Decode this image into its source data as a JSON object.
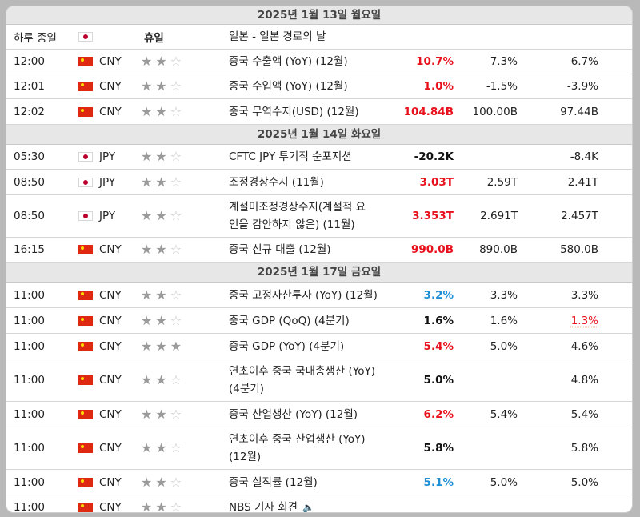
{
  "colors": {
    "better": "#e8121e",
    "worse": "#1e8fd6",
    "date_header_bg": "#e7e7e7"
  },
  "date_headers": [
    "2025년 1월 13일 월요일",
    "2025년 1월 14일 화요일",
    "2025년 1월 17일 금요일"
  ],
  "holiday": {
    "label": "하루 종일",
    "flag": "jp-flag-icon",
    "type": "휴일",
    "event": "일본 - 일본 경로의 날"
  },
  "day1": [
    {
      "time": "12:00",
      "currency": "CNY",
      "event": "중국 수출액 (YoY) (12월)",
      "actual": "10.7%",
      "forecast": "7.3%",
      "previous": "6.7%"
    },
    {
      "time": "12:01",
      "currency": "CNY",
      "event": "중국 수입액 (YoY) (12월)",
      "actual": "1.0%",
      "forecast": "-1.5%",
      "previous": "-3.9%"
    },
    {
      "time": "12:02",
      "currency": "CNY",
      "event": "중국 무역수지(USD) (12월)",
      "actual": "104.84B",
      "forecast": "100.00B",
      "previous": "97.44B"
    }
  ],
  "day2": [
    {
      "time": "05:30",
      "currency": "JPY",
      "event": "CFTC JPY 투기적 순포지션",
      "actual": "-20.2K",
      "forecast": "",
      "previous": "-8.4K"
    },
    {
      "time": "08:50",
      "currency": "JPY",
      "event": "조정경상수지 (11월)",
      "actual": "3.03T",
      "forecast": "2.59T",
      "previous": "2.41T"
    },
    {
      "time": "08:50",
      "currency": "JPY",
      "event_line1": "계절미조정경상수지(계절적 요",
      "event_line2": "인을 감안하지 않은) (11월)",
      "actual": "3.353T",
      "forecast": "2.691T",
      "previous": "2.457T"
    },
    {
      "time": "16:15",
      "currency": "CNY",
      "event": "중국 신규 대출 (12월)",
      "actual": "990.0B",
      "forecast": "890.0B",
      "previous": "580.0B"
    }
  ],
  "day3": [
    {
      "time": "11:00",
      "currency": "CNY",
      "event": "중국 고정자산투자 (YoY) (12월)",
      "actual": "3.2%",
      "forecast": "3.3%",
      "previous": "3.3%"
    },
    {
      "time": "11:00",
      "currency": "CNY",
      "event": "중국 GDP (QoQ) (4분기)",
      "actual": "1.6%",
      "forecast": "1.6%",
      "previous": "1.3%"
    },
    {
      "time": "11:00",
      "currency": "CNY",
      "event": "중국 GDP (YoY) (4분기)",
      "actual": "5.4%",
      "forecast": "5.0%",
      "previous": "4.6%"
    },
    {
      "time": "11:00",
      "currency": "CNY",
      "event_line1": "연초이후 중국 국내총생산 (YoY)",
      "event_line2": "(4분기)",
      "actual": "5.0%",
      "forecast": "",
      "previous": "4.8%"
    },
    {
      "time": "11:00",
      "currency": "CNY",
      "event": "중국 산업생산 (YoY) (12월)",
      "actual": "6.2%",
      "forecast": "5.4%",
      "previous": "5.4%"
    },
    {
      "time": "11:00",
      "currency": "CNY",
      "event_line1": "연초이후 중국 산업생산 (YoY)",
      "event_line2": "(12월)",
      "actual": "5.8%",
      "forecast": "",
      "previous": "5.8%"
    },
    {
      "time": "11:00",
      "currency": "CNY",
      "event": "중국 실직률 (12월)",
      "actual": "5.1%",
      "forecast": "5.0%",
      "previous": "5.0%"
    },
    {
      "time": "11:00",
      "currency": "CNY",
      "event": "NBS 기자 회견",
      "actual": "",
      "forecast": "",
      "previous": ""
    }
  ]
}
